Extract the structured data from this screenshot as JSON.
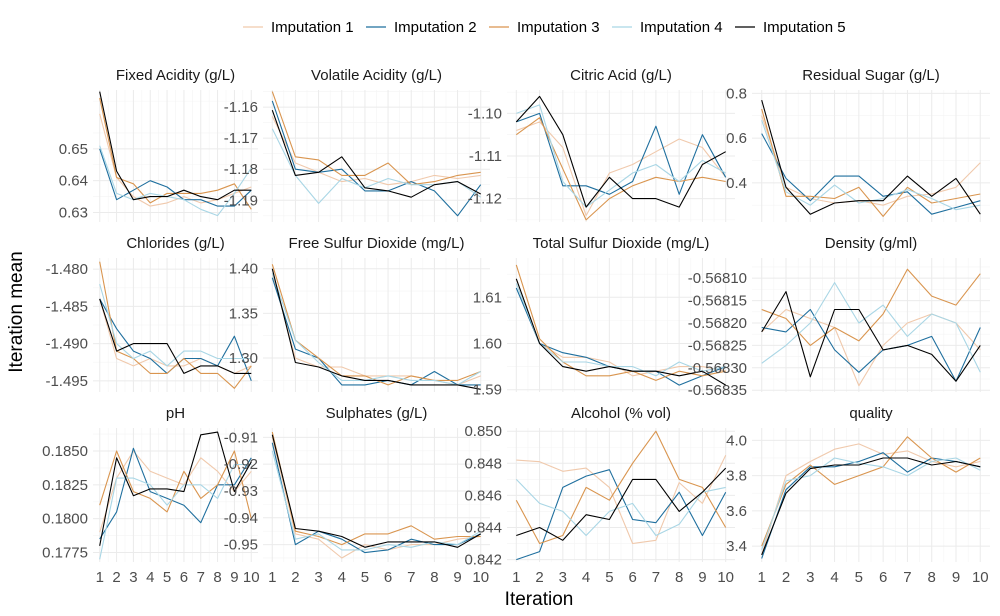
{
  "chart_data": {
    "type": "line",
    "xlabel": "Iteration",
    "ylabel": "Iteration mean",
    "x": [
      1,
      2,
      3,
      4,
      5,
      6,
      7,
      8,
      9,
      10
    ],
    "x_ticks": [
      "1",
      "2",
      "3",
      "4",
      "5",
      "6",
      "7",
      "8",
      "9",
      "10"
    ],
    "legend_position": "top",
    "series_meta": [
      {
        "name": "Imputation 1",
        "color": "#f0c9ac"
      },
      {
        "name": "Imputation 2",
        "color": "#1f6f9e"
      },
      {
        "name": "Imputation 3",
        "color": "#d9954f"
      },
      {
        "name": "Imputation 4",
        "color": "#a9d6e5"
      },
      {
        "name": "Imputation 5",
        "color": "#000000"
      }
    ],
    "panels": [
      {
        "title": "Fixed Acidity (g/L)",
        "ylim": [
          0.627,
          0.6685
        ],
        "yticks": [
          0.63,
          0.64,
          0.65
        ],
        "ytick_labels": [
          "0.63",
          "0.64",
          "0.65"
        ],
        "series": [
          [
            0.661,
            0.641,
            0.635,
            0.632,
            0.633,
            0.635,
            0.633,
            0.634,
            0.636,
            0.638
          ],
          [
            0.65,
            0.634,
            0.637,
            0.64,
            0.638,
            0.634,
            0.634,
            0.632,
            0.632,
            0.637
          ],
          [
            0.666,
            0.641,
            0.639,
            0.633,
            0.636,
            0.636,
            0.636,
            0.637,
            0.639,
            0.631
          ],
          [
            0.651,
            0.636,
            0.634,
            0.636,
            0.635,
            0.634,
            0.631,
            0.629,
            0.636,
            0.644
          ],
          [
            0.668,
            0.643,
            0.634,
            0.635,
            0.635,
            0.637,
            0.635,
            0.634,
            0.637,
            0.637
          ]
        ]
      },
      {
        "title": "Volatile Acidity (g/L)",
        "ylim": [
          -1.197,
          -1.1545
        ],
        "yticks": [
          -1.19,
          -1.18,
          -1.17,
          -1.16
        ],
        "ytick_labels": [
          "-1.19",
          "-1.18",
          "-1.17",
          "-1.16"
        ],
        "series": [
          [
            -1.163,
            -1.178,
            -1.181,
            -1.184,
            -1.183,
            -1.185,
            -1.184,
            -1.182,
            -1.183,
            -1.182
          ],
          [
            -1.158,
            -1.18,
            -1.181,
            -1.18,
            -1.187,
            -1.187,
            -1.184,
            -1.187,
            -1.195,
            -1.185
          ],
          [
            -1.155,
            -1.176,
            -1.177,
            -1.182,
            -1.182,
            -1.178,
            -1.185,
            -1.184,
            -1.182,
            -1.181
          ],
          [
            -1.167,
            -1.182,
            -1.191,
            -1.183,
            -1.186,
            -1.183,
            -1.185,
            -1.185,
            -1.184,
            -1.189
          ],
          [
            -1.161,
            -1.182,
            -1.181,
            -1.176,
            -1.186,
            -1.187,
            -1.189,
            -1.185,
            -1.184,
            -1.188
          ]
        ]
      },
      {
        "title": "Citric Acid (g/L)",
        "ylim": [
          -1.1255,
          -1.0945
        ],
        "yticks": [
          -1.12,
          -1.11,
          -1.1
        ],
        "ytick_labels": [
          "-1.12",
          "-1.11",
          "-1.10"
        ],
        "series": [
          [
            -1.104,
            -1.102,
            -1.108,
            -1.124,
            -1.114,
            -1.112,
            -1.109,
            -1.106,
            -1.108,
            -1.115
          ],
          [
            -1.102,
            -1.1,
            -1.117,
            -1.117,
            -1.119,
            -1.116,
            -1.103,
            -1.119,
            -1.105,
            -1.115
          ],
          [
            -1.105,
            -1.101,
            -1.113,
            -1.125,
            -1.12,
            -1.117,
            -1.115,
            -1.116,
            -1.115,
            -1.116
          ],
          [
            -1.1,
            -1.098,
            -1.116,
            -1.122,
            -1.118,
            -1.114,
            -1.112,
            -1.116,
            -1.111,
            -1.114
          ],
          [
            -1.102,
            -1.096,
            -1.105,
            -1.122,
            -1.115,
            -1.12,
            -1.12,
            -1.122,
            -1.112,
            -1.109
          ]
        ]
      },
      {
        "title": "Residual Sugar (g/L)",
        "ylim": [
          0.225,
          0.815
        ],
        "yticks": [
          0.4,
          0.6,
          0.8
        ],
        "ytick_labels": [
          "0.4",
          "0.6",
          "0.8"
        ],
        "series": [
          [
            0.7,
            0.38,
            0.33,
            0.31,
            0.32,
            0.3,
            0.34,
            0.35,
            0.38,
            0.49
          ],
          [
            0.62,
            0.42,
            0.32,
            0.43,
            0.43,
            0.34,
            0.36,
            0.26,
            0.29,
            0.32
          ],
          [
            0.73,
            0.34,
            0.34,
            0.33,
            0.38,
            0.25,
            0.38,
            0.31,
            0.33,
            0.35
          ],
          [
            0.68,
            0.36,
            0.3,
            0.39,
            0.31,
            0.33,
            0.37,
            0.33,
            0.28,
            0.3
          ],
          [
            0.77,
            0.38,
            0.26,
            0.31,
            0.32,
            0.32,
            0.43,
            0.34,
            0.42,
            0.26
          ]
        ]
      },
      {
        "title": "Chlorides (g/L)",
        "ylim": [
          -1.4965,
          -1.4785
        ],
        "yticks": [
          -1.495,
          -1.49,
          -1.485,
          -1.48
        ],
        "ytick_labels": [
          "-1.495",
          "-1.490",
          "-1.485",
          "-1.480"
        ],
        "series": [
          [
            -1.484,
            -1.492,
            -1.493,
            -1.492,
            -1.493,
            -1.493,
            -1.492,
            -1.493,
            -1.494,
            -1.493
          ],
          [
            -1.484,
            -1.488,
            -1.491,
            -1.492,
            -1.494,
            -1.492,
            -1.492,
            -1.493,
            -1.489,
            -1.495
          ],
          [
            -1.479,
            -1.491,
            -1.492,
            -1.494,
            -1.494,
            -1.492,
            -1.494,
            -1.494,
            -1.496,
            -1.493
          ],
          [
            -1.482,
            -1.49,
            -1.492,
            -1.491,
            -1.493,
            -1.491,
            -1.491,
            -1.492,
            -1.492,
            -1.492
          ],
          [
            -1.484,
            -1.491,
            -1.49,
            -1.49,
            -1.49,
            -1.494,
            -1.493,
            -1.493,
            -1.494,
            -1.494
          ]
        ]
      },
      {
        "title": "Free Sulfur Dioxide (mg/L)",
        "ylim": [
          1.262,
          1.412
        ],
        "yticks": [
          1.3,
          1.35,
          1.4
        ],
        "ytick_labels": [
          "1.30",
          "1.35",
          "1.40"
        ],
        "series": [
          [
            1.395,
            1.3,
            1.29,
            1.29,
            1.28,
            1.28,
            1.28,
            1.275,
            1.27,
            1.28
          ],
          [
            1.39,
            1.31,
            1.3,
            1.27,
            1.27,
            1.275,
            1.27,
            1.285,
            1.27,
            1.27
          ],
          [
            1.405,
            1.32,
            1.3,
            1.28,
            1.28,
            1.27,
            1.28,
            1.275,
            1.275,
            1.285
          ],
          [
            1.395,
            1.32,
            1.295,
            1.275,
            1.275,
            1.28,
            1.275,
            1.275,
            1.27,
            1.285
          ],
          [
            1.4,
            1.295,
            1.29,
            1.28,
            1.275,
            1.275,
            1.27,
            1.27,
            1.27,
            1.265
          ]
        ]
      },
      {
        "title": "Total Sulfur Dioxide (mg/L)",
        "ylim": [
          1.5895,
          1.6185
        ],
        "yticks": [
          1.59,
          1.6,
          1.61
        ],
        "ytick_labels": [
          "1.59",
          "1.60",
          "1.61"
        ],
        "series": [
          [
            1.614,
            1.6,
            1.597,
            1.597,
            1.596,
            1.593,
            1.594,
            1.595,
            1.595,
            1.594
          ],
          [
            1.612,
            1.6,
            1.598,
            1.597,
            1.595,
            1.594,
            1.594,
            1.591,
            1.593,
            1.595
          ],
          [
            1.617,
            1.601,
            1.596,
            1.593,
            1.593,
            1.594,
            1.592,
            1.594,
            1.593,
            1.594
          ],
          [
            1.613,
            1.6,
            1.596,
            1.596,
            1.595,
            1.595,
            1.593,
            1.596,
            1.594,
            1.595
          ],
          [
            1.614,
            1.6,
            1.595,
            1.594,
            1.595,
            1.594,
            1.594,
            1.593,
            1.594,
            1.591
          ]
        ]
      },
      {
        "title": "Density (g/ml)",
        "ylim": [
          -0.568354,
          -0.568055
        ],
        "yticks": [
          -0.56835,
          -0.5683,
          -0.56825,
          -0.5682,
          -0.56815,
          -0.5681
        ],
        "ytick_labels": [
          "-0.56835",
          "-0.56830",
          "-0.56825",
          "-0.56820",
          "-0.56815",
          "-0.56810"
        ],
        "series": [
          [
            -0.56822,
            -0.56817,
            -0.56819,
            -0.56821,
            -0.56834,
            -0.56825,
            -0.5682,
            -0.56818,
            -0.5682,
            -0.56826
          ],
          [
            -0.56821,
            -0.56822,
            -0.56817,
            -0.56826,
            -0.56831,
            -0.56826,
            -0.56825,
            -0.56823,
            -0.56833,
            -0.56821
          ],
          [
            -0.56817,
            -0.56819,
            -0.56825,
            -0.56821,
            -0.56824,
            -0.56818,
            -0.56808,
            -0.56814,
            -0.56816,
            -0.56809
          ],
          [
            -0.56829,
            -0.56825,
            -0.5682,
            -0.56811,
            -0.5682,
            -0.56816,
            -0.56823,
            -0.56818,
            -0.5682,
            -0.56831
          ],
          [
            -0.56822,
            -0.56813,
            -0.56832,
            -0.56817,
            -0.56817,
            -0.56826,
            -0.56825,
            -0.56827,
            -0.56833,
            -0.56825
          ]
        ]
      },
      {
        "title": "pH",
        "ylim": [
          0.1768,
          0.1867
        ],
        "yticks": [
          0.1775,
          0.18,
          0.1825,
          0.185
        ],
        "ytick_labels": [
          "0.1775",
          "0.1800",
          "0.1825",
          "0.1850"
        ],
        "series": [
          [
            0.179,
            0.183,
            0.185,
            0.1835,
            0.183,
            0.1825,
            0.1845,
            0.1835,
            0.182,
            0.1835
          ],
          [
            0.1785,
            0.1805,
            0.1852,
            0.182,
            0.1815,
            0.181,
            0.1797,
            0.1825,
            0.1825,
            0.1845
          ],
          [
            0.181,
            0.185,
            0.182,
            0.1815,
            0.1805,
            0.1835,
            0.1815,
            0.1825,
            0.185,
            0.18
          ],
          [
            0.177,
            0.183,
            0.183,
            0.1825,
            0.181,
            0.1825,
            0.1825,
            0.1815,
            0.184,
            0.184
          ],
          [
            0.178,
            0.1845,
            0.1817,
            0.1822,
            0.1822,
            0.182,
            0.1862,
            0.1864,
            0.182,
            0.1842
          ]
        ]
      },
      {
        "title": "Sulphates (g/L)",
        "ylim": [
          -0.9565,
          -0.9065
        ],
        "yticks": [
          -0.95,
          -0.94,
          -0.93,
          -0.92,
          -0.91
        ],
        "ytick_labels": [
          "-0.95",
          "-0.94",
          "-0.93",
          "-0.92",
          "-0.91"
        ],
        "series": [
          [
            -0.91,
            -0.946,
            -0.948,
            -0.955,
            -0.95,
            -0.952,
            -0.95,
            -0.95,
            -0.948,
            -0.947
          ],
          [
            -0.912,
            -0.95,
            -0.945,
            -0.948,
            -0.953,
            -0.952,
            -0.948,
            -0.95,
            -0.95,
            -0.946
          ],
          [
            -0.908,
            -0.945,
            -0.947,
            -0.95,
            -0.946,
            -0.946,
            -0.943,
            -0.948,
            -0.947,
            -0.947
          ],
          [
            -0.915,
            -0.948,
            -0.946,
            -0.952,
            -0.952,
            -0.95,
            -0.951,
            -0.949,
            -0.95,
            -0.945
          ],
          [
            -0.909,
            -0.944,
            -0.945,
            -0.947,
            -0.951,
            -0.949,
            -0.949,
            -0.949,
            -0.951,
            -0.946
          ]
        ]
      },
      {
        "title": "Alcohol (% vol)",
        "ylim": [
          0.84185,
          0.8502
        ],
        "yticks": [
          0.842,
          0.844,
          0.846,
          0.848,
          0.85
        ],
        "ytick_labels": [
          "0.842",
          "0.844",
          "0.846",
          "0.848",
          "0.850"
        ],
        "series": [
          [
            0.8482,
            0.8481,
            0.8475,
            0.8477,
            0.8465,
            0.843,
            0.8432,
            0.8468,
            0.8455,
            0.8485
          ],
          [
            0.842,
            0.8425,
            0.8465,
            0.8472,
            0.8476,
            0.8445,
            0.8443,
            0.8462,
            0.8435,
            0.8462
          ],
          [
            0.8457,
            0.843,
            0.8435,
            0.8465,
            0.8457,
            0.848,
            0.85,
            0.847,
            0.8465,
            0.844
          ],
          [
            0.847,
            0.8455,
            0.845,
            0.8435,
            0.845,
            0.8455,
            0.8435,
            0.8442,
            0.8462,
            0.8465
          ],
          [
            0.8435,
            0.844,
            0.8432,
            0.8448,
            0.8445,
            0.847,
            0.847,
            0.845,
            0.8462,
            0.8477
          ]
        ]
      },
      {
        "title": "quality",
        "ylim": [
          3.31,
          4.07
        ],
        "yticks": [
          3.4,
          3.6,
          3.8,
          4.0
        ],
        "ytick_labels": [
          "3.4",
          "3.6",
          "3.8",
          "4.0"
        ],
        "series": [
          [
            3.35,
            3.8,
            3.88,
            3.95,
            3.98,
            3.92,
            3.94,
            3.88,
            3.85,
            3.88
          ],
          [
            3.33,
            3.72,
            3.85,
            3.85,
            3.88,
            3.93,
            3.82,
            3.9,
            3.88,
            3.85
          ],
          [
            3.4,
            3.75,
            3.86,
            3.75,
            3.8,
            3.85,
            4.02,
            3.9,
            3.82,
            3.9
          ],
          [
            3.38,
            3.77,
            3.8,
            3.9,
            3.87,
            3.85,
            3.8,
            3.88,
            3.9,
            3.83
          ],
          [
            3.35,
            3.7,
            3.84,
            3.86,
            3.86,
            3.9,
            3.9,
            3.86,
            3.88,
            3.85
          ]
        ]
      }
    ]
  }
}
